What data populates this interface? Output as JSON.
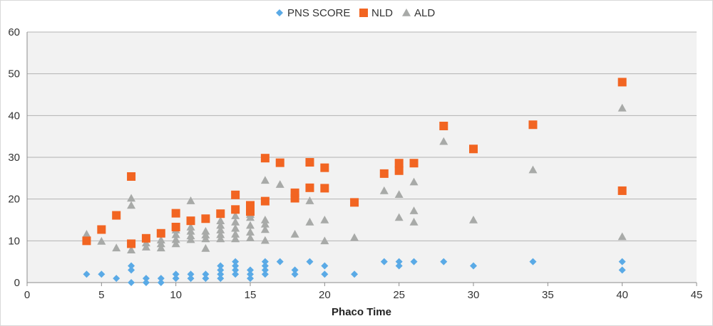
{
  "chart_data": {
    "type": "scatter",
    "xlabel": "Phaco Time",
    "ylabel": "",
    "xlim": [
      0,
      45
    ],
    "ylim": [
      0,
      60
    ],
    "x_ticks": [
      "0",
      "5",
      "10",
      "15",
      "20",
      "25",
      "30",
      "35",
      "40",
      "45"
    ],
    "y_ticks": [
      "0",
      "10",
      "20",
      "30",
      "40",
      "50",
      "60"
    ],
    "grid": "horizontal",
    "legend_position": "top",
    "series": [
      {
        "name": "PNS SCORE",
        "marker": "diamond",
        "color": "#5aaae6",
        "points": [
          [
            4,
            2
          ],
          [
            5,
            2
          ],
          [
            6,
            1
          ],
          [
            7,
            0
          ],
          [
            7,
            3
          ],
          [
            7,
            4
          ],
          [
            8,
            0
          ],
          [
            8,
            1
          ],
          [
            9,
            0
          ],
          [
            9,
            1
          ],
          [
            10,
            1
          ],
          [
            10,
            2
          ],
          [
            11,
            1
          ],
          [
            11,
            2
          ],
          [
            12,
            1
          ],
          [
            12,
            2
          ],
          [
            13,
            1
          ],
          [
            13,
            2
          ],
          [
            13,
            3
          ],
          [
            13,
            4
          ],
          [
            14,
            2
          ],
          [
            14,
            3
          ],
          [
            14,
            4
          ],
          [
            14,
            5
          ],
          [
            15,
            1
          ],
          [
            15,
            2
          ],
          [
            15,
            3
          ],
          [
            16,
            2
          ],
          [
            16,
            3
          ],
          [
            16,
            4
          ],
          [
            16,
            5
          ],
          [
            17,
            5
          ],
          [
            18,
            2
          ],
          [
            18,
            3
          ],
          [
            19,
            5
          ],
          [
            20,
            2
          ],
          [
            20,
            4
          ],
          [
            22,
            2
          ],
          [
            24,
            5
          ],
          [
            25,
            4
          ],
          [
            25,
            5
          ],
          [
            26,
            5
          ],
          [
            28,
            5
          ],
          [
            30,
            4
          ],
          [
            34,
            5
          ],
          [
            40,
            3
          ],
          [
            40,
            5
          ]
        ]
      },
      {
        "name": "NLD",
        "marker": "square",
        "color": "#f26522",
        "points": [
          [
            4,
            10
          ],
          [
            5,
            12.7
          ],
          [
            6,
            16.1
          ],
          [
            7,
            9.3
          ],
          [
            7,
            25.4
          ],
          [
            8,
            10.6
          ],
          [
            9,
            11.8
          ],
          [
            10,
            13.3
          ],
          [
            10,
            16.6
          ],
          [
            11,
            14.8
          ],
          [
            12,
            15.3
          ],
          [
            13,
            16.5
          ],
          [
            14,
            17.5
          ],
          [
            14,
            21
          ],
          [
            15,
            17
          ],
          [
            15,
            18.5
          ],
          [
            16,
            19.5
          ],
          [
            16,
            29.8
          ],
          [
            17,
            28.7
          ],
          [
            18,
            20.2
          ],
          [
            18,
            21.5
          ],
          [
            19,
            22.7
          ],
          [
            19,
            28.8
          ],
          [
            20,
            22.6
          ],
          [
            20,
            27.5
          ],
          [
            22,
            19.2
          ],
          [
            24,
            26.1
          ],
          [
            25,
            26.8
          ],
          [
            25,
            28.6
          ],
          [
            26,
            28.6
          ],
          [
            28,
            37.5
          ],
          [
            30,
            32
          ],
          [
            34,
            37.8
          ],
          [
            40,
            22
          ],
          [
            40,
            48
          ]
        ]
      },
      {
        "name": "ALD",
        "marker": "triangle",
        "color": "#a8aaa8",
        "points": [
          [
            4,
            11.6
          ],
          [
            5,
            9.9
          ],
          [
            6,
            8.3
          ],
          [
            7,
            7.8
          ],
          [
            7,
            18.5
          ],
          [
            7,
            20.2
          ],
          [
            8,
            8.5
          ],
          [
            8,
            9.5
          ],
          [
            9,
            8.3
          ],
          [
            9,
            9.3
          ],
          [
            9,
            10.2
          ],
          [
            10,
            9.3
          ],
          [
            10,
            10.3
          ],
          [
            10,
            11.5
          ],
          [
            10,
            12.6
          ],
          [
            11,
            10.3
          ],
          [
            11,
            11.2
          ],
          [
            11,
            12.3
          ],
          [
            11,
            13.3
          ],
          [
            11,
            19.6
          ],
          [
            12,
            8.2
          ],
          [
            12,
            10.5
          ],
          [
            12,
            11.4
          ],
          [
            12,
            12.3
          ],
          [
            13,
            10.5
          ],
          [
            13,
            11.5
          ],
          [
            13,
            12.6
          ],
          [
            13,
            13.7
          ],
          [
            13,
            14.8
          ],
          [
            14,
            10.5
          ],
          [
            14,
            11.6
          ],
          [
            14,
            13
          ],
          [
            14,
            14.5
          ],
          [
            14,
            16
          ],
          [
            15,
            10.7
          ],
          [
            15,
            12.1
          ],
          [
            15,
            13.7
          ],
          [
            15,
            15.6
          ],
          [
            15,
            16.3
          ],
          [
            16,
            10.1
          ],
          [
            16,
            12.7
          ],
          [
            16,
            14
          ],
          [
            16,
            15
          ],
          [
            16,
            24.5
          ],
          [
            17,
            23.5
          ],
          [
            18,
            11.6
          ],
          [
            19,
            14.5
          ],
          [
            19,
            19.6
          ],
          [
            20,
            10
          ],
          [
            20,
            15
          ],
          [
            22,
            10.8
          ],
          [
            24,
            22
          ],
          [
            25,
            15.6
          ],
          [
            25,
            21.1
          ],
          [
            26,
            14.5
          ],
          [
            26,
            17.2
          ],
          [
            26,
            24.1
          ],
          [
            28,
            33.8
          ],
          [
            30,
            15
          ],
          [
            34,
            27
          ],
          [
            40,
            11
          ],
          [
            40,
            41.8
          ]
        ]
      }
    ]
  }
}
